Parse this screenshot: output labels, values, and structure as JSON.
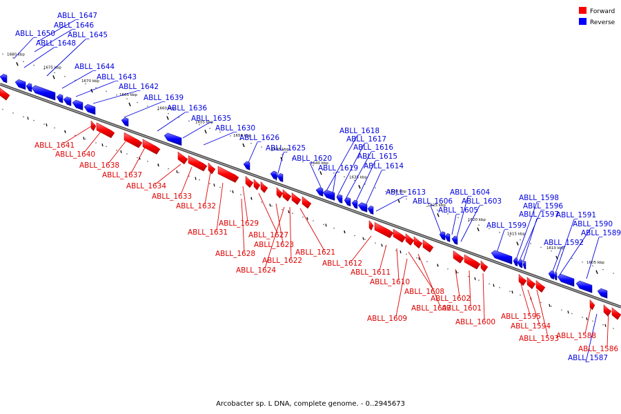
{
  "legend": [
    {
      "label": "Forward",
      "color": "#ff0000"
    },
    {
      "label": "Reverse",
      "color": "#0000ff"
    }
  ],
  "footer": "Arcobacter sp. L DNA, complete genome. - 0..2945673",
  "colors": {
    "forward": "#ff0000",
    "reverse": "#0000ff",
    "backbone": "#666666"
  },
  "scale_labels": [
    "1680 kbp",
    "1675 kbp",
    "1670 kbp",
    "1665 kbp",
    "1660 kbp",
    "1655 kbp",
    "1650 kbp",
    "1645 kbp",
    "1640 kbp",
    "1635 kbp",
    "1630 kbp",
    "1625 kbp",
    "1620 kbp",
    "1615 kbp",
    "1610 kbp",
    "1605 kbp"
  ],
  "genes": {
    "reverse": [
      "ABLL_1647",
      "ABLL_1646",
      "ABLL_1650",
      "ABLL_1645",
      "ABLL_1648",
      "ABLL_1644",
      "ABLL_1643",
      "ABLL_1642",
      "ABLL_1639",
      "ABLL_1636",
      "ABLL_1635",
      "ABLL_1630",
      "ABLL_1626",
      "ABLL_1625",
      "ABLL_1620",
      "ABLL_1619",
      "ABLL_1618",
      "ABLL_1617",
      "ABLL_1616",
      "ABLL_1615",
      "ABLL_1614",
      "ABLL_1613",
      "ABLL_1606",
      "ABLL_1605",
      "ABLL_1604",
      "ABLL_1603",
      "ABLL_1599",
      "ABLL_1598",
      "ABLL_1596",
      "ABLL_1597",
      "ABLL_1592",
      "ABLL_1591",
      "ABLL_1590",
      "ABLL_1589",
      "ABLL_1587"
    ],
    "forward": [
      "ABLL_1641",
      "ABLL_1640",
      "ABLL_1638",
      "ABLL_1637",
      "ABLL_1634",
      "ABLL_1633",
      "ABLL_1632",
      "ABLL_1631",
      "ABLL_1629",
      "ABLL_1627",
      "ABLL_1628",
      "ABLL_1623",
      "ABLL_1624",
      "ABLL_1622",
      "ABLL_1621",
      "ABLL_1612",
      "ABLL_1611",
      "ABLL_1610",
      "ABLL_1608",
      "ABLL_1607",
      "ABLL_1609",
      "ABLL_1602",
      "ABLL_1601",
      "ABLL_1600",
      "ABLL_1595",
      "ABLL_1594",
      "ABLL_1593",
      "ABLL_1588",
      "ABLL_1586"
    ]
  }
}
